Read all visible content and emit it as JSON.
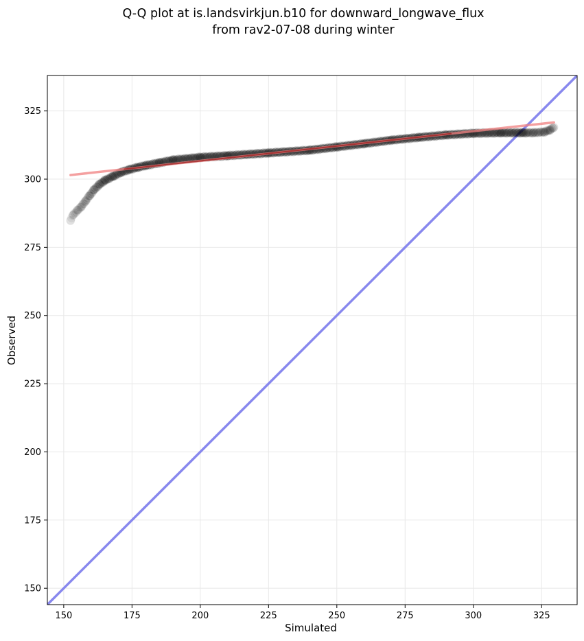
{
  "chart_data": {
    "type": "scatter",
    "title_lines": [
      "Q-Q plot at is.landsvirkjun.b10 for downward_longwave_flux",
      "from rav2-07-08 during winter"
    ],
    "xlabel": "Simulated",
    "ylabel": "Observed",
    "xlim": [
      144,
      338
    ],
    "ylim": [
      144,
      338
    ],
    "x_ticks": [
      150,
      175,
      200,
      225,
      250,
      275,
      300,
      325
    ],
    "y_ticks": [
      150,
      175,
      200,
      225,
      250,
      275,
      300,
      325
    ],
    "x_tick_labels": [
      "150",
      "175",
      "200",
      "225",
      "250",
      "275",
      "300",
      "325"
    ],
    "y_tick_labels": [
      "150",
      "175",
      "200",
      "225",
      "250",
      "275",
      "300",
      "325"
    ],
    "grid": true,
    "colors": {
      "points": "#000000",
      "fit_line": "#f08080",
      "fit_line_inner": "#8b0000",
      "identity_line": "#8888ee",
      "grid": "#e8e8e8"
    },
    "fit_line": {
      "x": [
        152.5,
        329.5
      ],
      "y": [
        301.5,
        320.8
      ]
    },
    "identity_line": {
      "x": [
        144,
        338
      ],
      "y": [
        144,
        338
      ]
    },
    "quantile_curve": {
      "x": [
        152.5,
        153.5,
        155,
        156.5,
        158,
        159.5,
        161,
        163,
        165,
        168,
        171,
        174,
        177,
        180,
        185,
        190,
        200,
        210,
        225,
        240,
        250,
        260,
        270,
        280,
        290,
        300,
        310,
        318,
        322,
        326,
        328,
        329.5
      ],
      "y": [
        285,
        287,
        288.5,
        290,
        292,
        294,
        296,
        298,
        299.5,
        301,
        302.5,
        303.5,
        304.3,
        305,
        306,
        307,
        308,
        308.6,
        309.6,
        310.6,
        311.8,
        313,
        314.3,
        315.3,
        316.2,
        316.8,
        317,
        317,
        317,
        317.3,
        318,
        319
      ]
    }
  }
}
